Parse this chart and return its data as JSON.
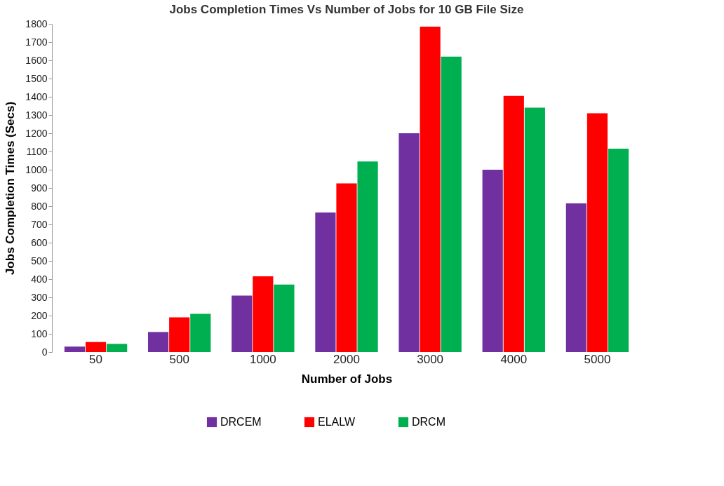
{
  "chart_data": {
    "type": "bar",
    "title": "Jobs Completion Times  Vs Number of Jobs for 10 GB File Size",
    "xlabel": "Number of Jobs",
    "ylabel": "Jobs Completion Times (Secs)",
    "categories": [
      "50",
      "500",
      "1000",
      "2000",
      "3000",
      "4000",
      "5000"
    ],
    "series": [
      {
        "name": "DRCEM",
        "color": "#7030a0",
        "values": [
          30,
          110,
          310,
          765,
          1200,
          1000,
          815
        ]
      },
      {
        "name": "ELALW",
        "color": "#ff0000",
        "values": [
          55,
          190,
          415,
          925,
          1785,
          1405,
          1310
        ]
      },
      {
        "name": "DRCM",
        "color": "#00b050",
        "values": [
          45,
          210,
          370,
          1045,
          1620,
          1340,
          1115
        ]
      }
    ],
    "ylim": [
      0,
      1800
    ],
    "yticks": [
      0,
      100,
      200,
      300,
      400,
      500,
      600,
      700,
      800,
      900,
      1000,
      1100,
      1200,
      1300,
      1400,
      1500,
      1600,
      1700,
      1800
    ],
    "grid": false,
    "legend": "bottom"
  }
}
